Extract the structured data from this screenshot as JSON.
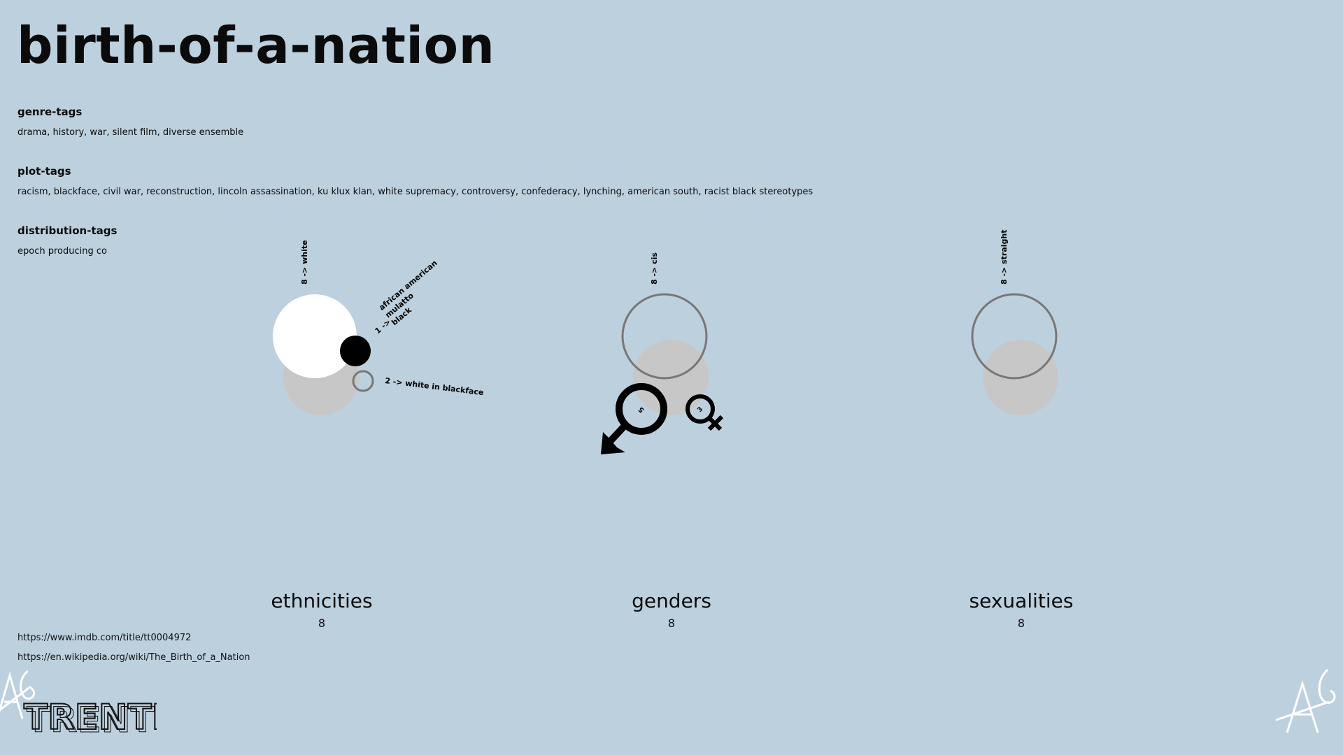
{
  "title": "birth-of-a-nation",
  "sections": {
    "genre": {
      "heading": "genre-tags",
      "text": "drama, history, war, silent film, diverse ensemble"
    },
    "plot": {
      "heading": "plot-tags",
      "text": "racism, blackface, civil war, reconstruction, lincoln assassination, ku klux klan, white supremacy, controversy, confederacy, lynching, american south, racist black stereotypes"
    },
    "distribution": {
      "heading": "distribution-tags",
      "text": "epoch producing co"
    }
  },
  "categories": [
    {
      "name": "ethnicities",
      "count": "8"
    },
    {
      "name": "genders",
      "count": "8"
    },
    {
      "name": "sexualities",
      "count": "8"
    }
  ],
  "ethnicity_labels": {
    "white": "8 -> white",
    "mixed_prefix": "1 ->",
    "mixed_lines": [
      "african american",
      "mulatto",
      "black"
    ],
    "blackface": "2 ->  white in blackface"
  },
  "gender_labels": {
    "cis": "8 -> cis",
    "male_count": "5",
    "female_count": "3"
  },
  "sexuality_labels": {
    "straight": "8 -> straight"
  },
  "links": {
    "imdb": "https://www.imdb.com/title/tt0004972",
    "wikipedia": "https://en.wikipedia.org/wiki/The_Birth_of_a_Nation"
  },
  "logo_text": "TRENTI",
  "colors": {
    "background": "#bdd0de",
    "shadow_circle": "#c7c7c7",
    "outline": "#777777",
    "ink": "#000000"
  }
}
